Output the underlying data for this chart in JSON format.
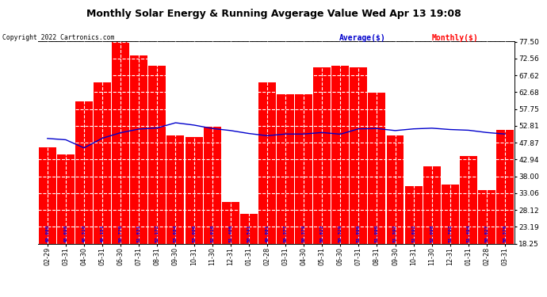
{
  "title": "Monthly Solar Energy & Running Avgerage Value Wed Apr 13 19:08",
  "copyright": "Copyright 2022 Cartronics.com",
  "categories": [
    "02-29",
    "03-31",
    "04-30",
    "05-31",
    "06-30",
    "07-31",
    "08-31",
    "09-30",
    "10-31",
    "11-30",
    "12-31",
    "01-31",
    "02-28",
    "03-31",
    "04-30",
    "05-31",
    "06-30",
    "07-31",
    "08-31",
    "09-30",
    "10-31",
    "11-30",
    "12-31",
    "01-31",
    "02-28",
    "03-31"
  ],
  "bar_values": [
    46.5,
    44.5,
    60.0,
    65.5,
    77.5,
    73.5,
    70.5,
    50.0,
    49.5,
    52.5,
    30.5,
    27.0,
    65.5,
    62.0,
    62.0,
    70.0,
    70.5,
    70.0,
    62.5,
    50.0,
    35.0,
    41.0,
    35.5,
    44.0,
    34.0,
    51.5
  ],
  "avg_values": [
    49.08,
    48.698,
    46.31,
    49.151,
    50.77,
    51.831,
    52.172,
    53.684,
    53.006,
    52.01,
    51.406,
    50.541,
    49.881,
    50.377,
    50.379,
    50.822,
    50.329,
    51.899,
    51.99,
    51.392,
    51.892,
    52.098,
    51.702,
    51.494,
    50.827,
    50.376
  ],
  "bar_color": "#ff0000",
  "avg_color": "#0000cc",
  "label_color": "#0000ee",
  "background_color": "#ffffff",
  "yticks": [
    18.25,
    23.19,
    28.12,
    33.06,
    38.0,
    42.94,
    47.87,
    52.81,
    57.75,
    62.68,
    67.62,
    72.56,
    77.5
  ],
  "ymin": 18.25,
  "ymax": 77.5,
  "legend_avg_label": "Average($)",
  "legend_monthly_label": "Monthly($)"
}
